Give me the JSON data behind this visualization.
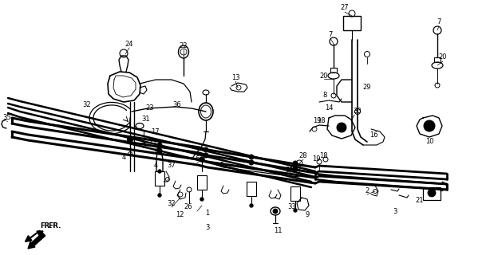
{
  "bg_color": "#ffffff",
  "figsize": [
    6.14,
    3.2
  ],
  "dpi": 100
}
